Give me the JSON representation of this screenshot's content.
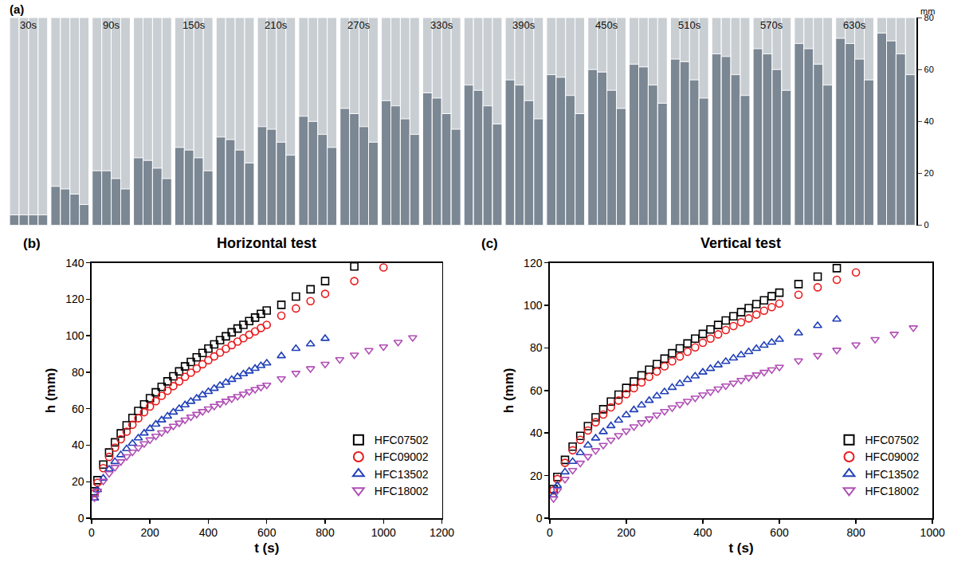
{
  "chart_data": [
    {
      "type": "bar",
      "annotations": [
        "(a)"
      ],
      "categories": [
        "30s",
        null,
        "90s",
        null,
        "150s",
        null,
        "210s",
        null,
        "270s",
        null,
        "330s",
        null,
        "390s",
        null,
        "450s",
        null,
        "510s",
        null,
        "570s",
        null,
        "630s",
        null
      ],
      "series": [
        {
          "color": "#7b8793",
          "values": [
            4,
            15,
            21,
            26,
            30,
            34,
            38,
            42,
            45,
            48,
            51,
            54,
            56,
            58,
            60,
            62,
            64,
            66,
            68,
            70,
            72,
            74
          ]
        },
        {
          "color": "#7b8793",
          "values": [
            4,
            14,
            21,
            25,
            29,
            33,
            37,
            40,
            43,
            46,
            49,
            52,
            54,
            57,
            59,
            61,
            63,
            65,
            66,
            68,
            70,
            71
          ]
        },
        {
          "color": "#7b8793",
          "values": [
            4,
            12,
            18,
            22,
            26,
            29,
            32,
            35,
            38,
            41,
            43,
            46,
            48,
            50,
            52,
            54,
            56,
            58,
            60,
            62,
            64,
            66
          ]
        },
        {
          "color": "#7b8793",
          "values": [
            4,
            8,
            14,
            18,
            21,
            24,
            27,
            30,
            32,
            35,
            37,
            39,
            41,
            43,
            45,
            47,
            49,
            50,
            52,
            54,
            56,
            58
          ]
        }
      ],
      "ylabel": "mm",
      "ylim": [
        0,
        80
      ],
      "yticks": [
        0,
        20,
        40,
        60,
        80
      ],
      "tick_labels": "y",
      "grid": false
    },
    {
      "type": "scatter",
      "annotations": [
        "(b)"
      ],
      "title": "Horizontal test",
      "xlabel": "t (s)",
      "ylabel": "h (mm)",
      "xlim": [
        0,
        1200
      ],
      "xticks": [
        0,
        200,
        400,
        600,
        800,
        1000,
        1200
      ],
      "ylim": [
        0,
        140
      ],
      "yticks": [
        0,
        20,
        40,
        60,
        80,
        100,
        120,
        140
      ],
      "legend": "lower right",
      "grid": false,
      "series": [
        {
          "name": "HFC07502",
          "color": "#000000",
          "marker": "square-open",
          "x": [
            10,
            20,
            40,
            60,
            80,
            100,
            120,
            140,
            160,
            180,
            200,
            220,
            240,
            260,
            280,
            300,
            320,
            340,
            360,
            380,
            400,
            420,
            440,
            460,
            480,
            500,
            520,
            540,
            560,
            580,
            600,
            650,
            700,
            750,
            800,
            900
          ],
          "values": [
            14.7,
            20.8,
            29.4,
            36.0,
            41.6,
            46.5,
            50.9,
            55.0,
            58.8,
            62.4,
            65.8,
            69.0,
            72.0,
            75.0,
            77.8,
            80.5,
            83.2,
            85.7,
            88.2,
            90.6,
            93.0,
            95.3,
            97.6,
            99.7,
            101.9,
            104.0,
            106.0,
            108.1,
            110.0,
            112.0,
            113.9,
            117,
            121.5,
            125.5,
            130,
            138
          ]
        },
        {
          "name": "HFC09002",
          "color": "#e8191c",
          "marker": "circle-open",
          "x": [
            10,
            20,
            40,
            60,
            80,
            100,
            120,
            140,
            160,
            180,
            200,
            220,
            240,
            260,
            280,
            300,
            320,
            340,
            360,
            380,
            400,
            420,
            440,
            460,
            480,
            500,
            520,
            540,
            560,
            580,
            600,
            650,
            700,
            750,
            800,
            900,
            1000
          ],
          "values": [
            13.7,
            19.4,
            27.4,
            33.6,
            38.7,
            43.3,
            47.4,
            51.2,
            54.8,
            58.1,
            61.2,
            64.2,
            67.1,
            69.8,
            72.4,
            75.0,
            77.5,
            79.8,
            82.1,
            84.4,
            86.6,
            88.7,
            90.8,
            92.9,
            94.9,
            96.8,
            98.7,
            100.6,
            102.4,
            104.3,
            106.0,
            111,
            115,
            119,
            123,
            130,
            137.5
          ]
        },
        {
          "name": "HFC13502",
          "color": "#2140b8",
          "marker": "triangle-up-open",
          "x": [
            10,
            20,
            40,
            60,
            80,
            100,
            120,
            140,
            160,
            180,
            200,
            220,
            240,
            260,
            280,
            300,
            320,
            340,
            360,
            380,
            400,
            420,
            440,
            460,
            480,
            500,
            520,
            540,
            560,
            580,
            600,
            650,
            700,
            750,
            800
          ],
          "values": [
            11.0,
            15.5,
            21.9,
            26.9,
            31.0,
            34.7,
            38.0,
            41.0,
            43.9,
            46.6,
            49.1,
            51.5,
            53.8,
            55.9,
            58.1,
            60.1,
            62.1,
            64.0,
            65.8,
            67.6,
            69.4,
            71.1,
            72.8,
            74.4,
            76.0,
            77.6,
            79.1,
            80.6,
            82.1,
            83.6,
            85.0,
            89,
            93,
            95.5,
            98.5
          ]
        },
        {
          "name": "HFC18002",
          "color": "#b04fb5",
          "marker": "triangle-down-open",
          "x": [
            10,
            20,
            40,
            60,
            80,
            100,
            120,
            140,
            160,
            180,
            200,
            220,
            240,
            260,
            280,
            300,
            320,
            340,
            360,
            380,
            400,
            420,
            440,
            460,
            480,
            500,
            520,
            540,
            560,
            580,
            600,
            650,
            700,
            750,
            800,
            850,
            900,
            950,
            1000,
            1050,
            1100
          ],
          "values": [
            11.2,
            15.0,
            20.3,
            24.5,
            27.9,
            31.0,
            33.8,
            36.3,
            38.7,
            40.9,
            43.0,
            45.0,
            46.9,
            48.7,
            50.5,
            52.2,
            53.9,
            55.5,
            57.0,
            58.5,
            60.0,
            61.4,
            62.8,
            64.2,
            65.5,
            66.8,
            68.1,
            69.4,
            70.6,
            71.8,
            73.0,
            76.5,
            79.5,
            82,
            84.5,
            87,
            89.5,
            92,
            94,
            96.5,
            99
          ]
        }
      ]
    },
    {
      "type": "scatter",
      "annotations": [
        "(c)"
      ],
      "title": "Vertical test",
      "xlabel": "t (s)",
      "ylabel": "h (mm)",
      "xlim": [
        0,
        1000
      ],
      "xticks": [
        0,
        200,
        400,
        600,
        800,
        1000
      ],
      "ylim": [
        0,
        120
      ],
      "yticks": [
        0,
        20,
        40,
        60,
        80,
        100,
        120
      ],
      "legend": "lower right",
      "grid": false,
      "series": [
        {
          "name": "HFC07502",
          "color": "#000000",
          "marker": "square-open",
          "x": [
            10,
            20,
            40,
            60,
            80,
            100,
            120,
            140,
            160,
            180,
            200,
            220,
            240,
            260,
            280,
            300,
            320,
            340,
            360,
            380,
            400,
            420,
            440,
            460,
            480,
            500,
            520,
            540,
            560,
            580,
            600,
            650,
            700,
            750
          ],
          "values": [
            13.7,
            19.4,
            27.4,
            33.6,
            38.7,
            43.3,
            47.4,
            51.2,
            54.8,
            58.1,
            61.2,
            64.2,
            67.1,
            69.8,
            72.4,
            75.0,
            77.5,
            79.8,
            82.1,
            84.4,
            86.6,
            88.7,
            90.8,
            92.9,
            94.9,
            96.8,
            98.7,
            100.6,
            102.4,
            104.3,
            106.0,
            110,
            113.5,
            117.5
          ]
        },
        {
          "name": "HFC09002",
          "color": "#e8191c",
          "marker": "circle-open",
          "x": [
            10,
            20,
            40,
            60,
            80,
            100,
            120,
            140,
            160,
            180,
            200,
            220,
            240,
            260,
            280,
            300,
            320,
            340,
            360,
            380,
            400,
            420,
            440,
            460,
            480,
            500,
            520,
            540,
            560,
            580,
            600,
            650,
            700,
            750,
            800
          ],
          "values": [
            13.0,
            18.4,
            26.0,
            31.9,
            36.8,
            41.2,
            45.1,
            48.7,
            52.1,
            55.3,
            58.3,
            61.1,
            63.8,
            66.4,
            68.9,
            71.4,
            73.7,
            76.0,
            78.2,
            80.3,
            82.4,
            84.4,
            86.4,
            88.4,
            90.3,
            92.1,
            93.9,
            95.7,
            97.5,
            99.2,
            100.9,
            105,
            108.5,
            112,
            115.5
          ]
        },
        {
          "name": "HFC13502",
          "color": "#2140b8",
          "marker": "triangle-up-open",
          "x": [
            10,
            20,
            40,
            60,
            80,
            100,
            120,
            140,
            160,
            180,
            200,
            220,
            240,
            260,
            280,
            300,
            320,
            340,
            360,
            380,
            400,
            420,
            440,
            460,
            480,
            500,
            520,
            540,
            560,
            580,
            600,
            650,
            700,
            750
          ],
          "values": [
            10.8,
            15.3,
            21.7,
            26.6,
            30.7,
            34.3,
            37.6,
            40.6,
            43.4,
            46.0,
            48.5,
            50.9,
            53.1,
            55.3,
            57.4,
            59.4,
            61.4,
            63.2,
            65.1,
            66.8,
            68.6,
            70.3,
            72.0,
            73.6,
            75.2,
            76.7,
            78.2,
            79.7,
            81.2,
            82.6,
            84.0,
            87,
            90.5,
            93.5
          ]
        },
        {
          "name": "HFC18002",
          "color": "#b04fb5",
          "marker": "triangle-down-open",
          "x": [
            10,
            20,
            40,
            60,
            80,
            100,
            120,
            140,
            160,
            180,
            200,
            220,
            240,
            260,
            280,
            300,
            320,
            340,
            360,
            380,
            400,
            420,
            440,
            460,
            480,
            500,
            520,
            540,
            560,
            580,
            600,
            650,
            700,
            750,
            800,
            850,
            900,
            950
          ],
          "values": [
            9.2,
            13.0,
            18.3,
            22.5,
            25.9,
            29.0,
            31.8,
            34.3,
            36.7,
            38.9,
            41.0,
            43.0,
            44.9,
            46.7,
            48.5,
            50.2,
            51.9,
            53.5,
            55.0,
            56.5,
            58.0,
            59.4,
            60.8,
            62.2,
            63.5,
            64.8,
            66.1,
            67.4,
            68.6,
            69.8,
            71.0,
            74,
            76.5,
            79,
            81.5,
            84,
            86.5,
            89.5
          ]
        }
      ]
    }
  ]
}
